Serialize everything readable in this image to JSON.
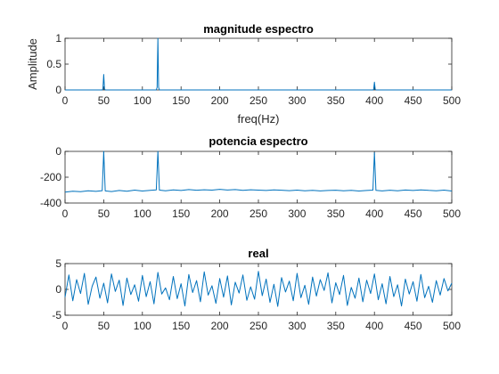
{
  "figure": {
    "background": "#ffffff",
    "line_color": "#0072BD",
    "frame_color": "#262626"
  },
  "chart_data": [
    {
      "type": "line",
      "title": "magnitude espectro",
      "xlabel": "freq(Hz)",
      "ylabel": "Amplitude",
      "xlim": [
        0,
        500
      ],
      "ylim": [
        0,
        1
      ],
      "xticks": [
        0,
        50,
        100,
        150,
        200,
        250,
        300,
        350,
        400,
        450,
        500
      ],
      "yticks": [
        0,
        0.5,
        1
      ],
      "xtick_labels": [
        "0",
        "50",
        "100",
        "150",
        "200",
        "250",
        "300",
        "350",
        "400",
        "450",
        "500"
      ],
      "ytick_labels": [
        "0",
        "0.5",
        "1"
      ],
      "grid": false,
      "series": [
        {
          "x": [
            0,
            48,
            49,
            50,
            51,
            52,
            118,
            119,
            120,
            121,
            122,
            398,
            399,
            400,
            401,
            402,
            500
          ],
          "y": [
            0,
            0,
            0.02,
            0.3,
            0.02,
            0,
            0,
            0.05,
            1.0,
            0.05,
            0,
            0,
            0.01,
            0.15,
            0.01,
            0,
            0
          ]
        }
      ]
    },
    {
      "type": "line",
      "title": "potencia espectro",
      "xlabel": "",
      "ylabel": "",
      "xlim": [
        0,
        500
      ],
      "ylim": [
        -400,
        0
      ],
      "xticks": [
        0,
        50,
        100,
        150,
        200,
        250,
        300,
        350,
        400,
        450,
        500
      ],
      "yticks": [
        -400,
        -200,
        0
      ],
      "xtick_labels": [
        "0",
        "50",
        "100",
        "150",
        "200",
        "250",
        "300",
        "350",
        "400",
        "450",
        "500"
      ],
      "ytick_labels": [
        "-400",
        "-200",
        "0"
      ],
      "grid": false,
      "series": [
        {
          "x": [
            0,
            10,
            20,
            30,
            40,
            48,
            50,
            52,
            60,
            70,
            80,
            90,
            100,
            110,
            118,
            120,
            122,
            130,
            140,
            150,
            160,
            170,
            180,
            190,
            200,
            210,
            220,
            230,
            240,
            250,
            260,
            270,
            280,
            290,
            300,
            310,
            320,
            330,
            340,
            350,
            360,
            370,
            380,
            390,
            398,
            400,
            402,
            410,
            420,
            430,
            440,
            450,
            460,
            470,
            480,
            490,
            500
          ],
          "y": [
            -315,
            -308,
            -312,
            -305,
            -310,
            -304,
            0,
            -306,
            -311,
            -303,
            -309,
            -300,
            -307,
            -302,
            -298,
            0,
            -300,
            -305,
            -298,
            -303,
            -296,
            -301,
            -297,
            -300,
            -294,
            -299,
            -296,
            -302,
            -297,
            -300,
            -303,
            -298,
            -301,
            -304,
            -300,
            -305,
            -302,
            -306,
            -303,
            -301,
            -305,
            -302,
            -307,
            -303,
            -300,
            -10,
            -302,
            -306,
            -301,
            -305,
            -299,
            -303,
            -298,
            -302,
            -305,
            -300,
            -307
          ]
        }
      ]
    },
    {
      "type": "line",
      "title": "real",
      "xlabel": "",
      "ylabel": "",
      "xlim": [
        0,
        500
      ],
      "ylim": [
        -5,
        5
      ],
      "xticks": [
        0,
        50,
        100,
        150,
        200,
        250,
        300,
        350,
        400,
        450,
        500
      ],
      "yticks": [
        -5,
        0,
        5
      ],
      "xtick_labels": [
        "0",
        "50",
        "100",
        "150",
        "200",
        "250",
        "300",
        "350",
        "400",
        "450",
        "500"
      ],
      "ytick_labels": [
        "-5",
        "0",
        "5"
      ],
      "grid": false,
      "series": [
        {
          "x": [
            0,
            5,
            10,
            15,
            20,
            25,
            30,
            35,
            40,
            45,
            50,
            55,
            60,
            65,
            70,
            75,
            80,
            85,
            90,
            95,
            100,
            105,
            110,
            115,
            120,
            125,
            130,
            135,
            140,
            145,
            150,
            155,
            160,
            165,
            170,
            175,
            180,
            185,
            190,
            195,
            200,
            205,
            210,
            215,
            220,
            225,
            230,
            235,
            240,
            245,
            250,
            255,
            260,
            265,
            270,
            275,
            280,
            285,
            290,
            295,
            300,
            305,
            310,
            315,
            320,
            325,
            330,
            335,
            340,
            345,
            350,
            355,
            360,
            365,
            370,
            375,
            380,
            385,
            390,
            395,
            400,
            405,
            410,
            415,
            420,
            425,
            430,
            435,
            440,
            445,
            450,
            455,
            460,
            465,
            470,
            475,
            480,
            485,
            490,
            495,
            500
          ],
          "y": [
            -1.5,
            2.8,
            -2.2,
            1.9,
            -0.8,
            3.1,
            -2.9,
            0.6,
            2.4,
            -1.7,
            1.2,
            -2.6,
            3.0,
            -0.4,
            1.8,
            -3.1,
            2.2,
            -1.0,
            0.9,
            -2.3,
            2.7,
            -1.4,
            1.5,
            -2.8,
            3.3,
            -0.9,
            0.3,
            -2.0,
            2.5,
            -1.8,
            1.1,
            -3.2,
            2.9,
            -0.6,
            1.7,
            -2.4,
            3.4,
            -1.1,
            0.7,
            -2.7,
            2.1,
            -1.5,
            2.6,
            -3.0,
            1.4,
            -0.7,
            2.8,
            -2.1,
            0.5,
            -1.9,
            3.5,
            -1.2,
            2.0,
            -2.5,
            1.0,
            -3.3,
            2.3,
            -0.5,
            1.6,
            -2.2,
            3.1,
            -1.6,
            0.8,
            -2.9,
            2.4,
            -1.3,
            1.9,
            -0.2,
            3.2,
            -2.6,
            1.3,
            -1.0,
            2.7,
            -3.1,
            0.4,
            -1.7,
            2.2,
            -2.4,
            1.8,
            -0.8,
            3.0,
            -2.0,
            1.1,
            -2.8,
            2.5,
            -1.4,
            0.9,
            -3.2,
            2.0,
            -0.9,
            1.5,
            -2.3,
            2.9,
            -1.6,
            0.6,
            -2.5,
            1.7,
            -1.1,
            2.1,
            -0.3,
            1.2
          ]
        }
      ]
    }
  ]
}
